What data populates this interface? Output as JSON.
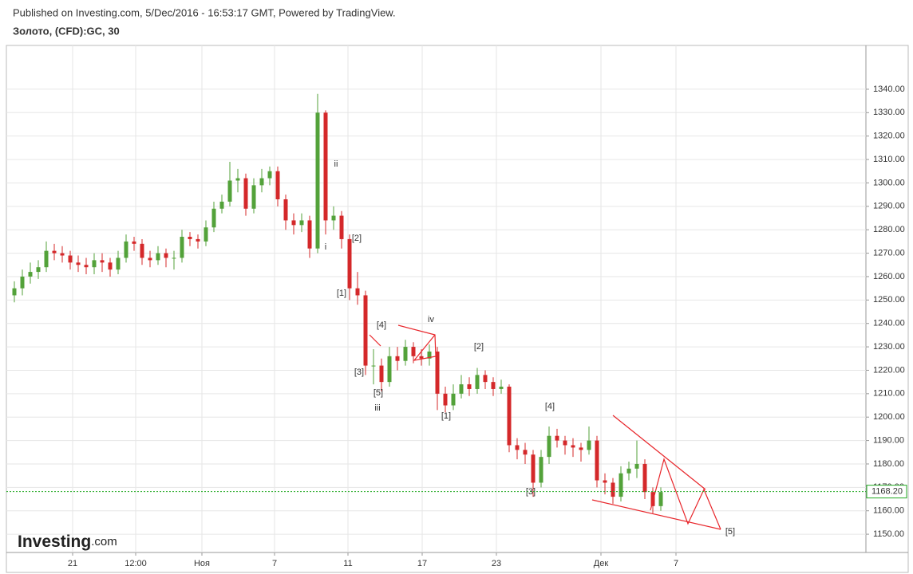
{
  "chart_data": {
    "type": "candlestick",
    "header": "Published on Investing.com, 5/Dec/2016 - 16:53:17 GMT, Powered by TradingView.",
    "title": "Золото, (CFD):GC, 30",
    "logo": [
      "Investing",
      ".com"
    ],
    "up_color": "#53a23a",
    "down_color": "#d4282a",
    "grid": true,
    "ylim": [
      1142.2,
      1358.7
    ],
    "yticks": [
      {
        "value": 1150,
        "label": "1150.00"
      },
      {
        "value": 1160,
        "label": "1160.00"
      },
      {
        "value": 1170,
        "label": "1170.00"
      },
      {
        "value": 1180,
        "label": "1180.00"
      },
      {
        "value": 1190,
        "label": "1190.00"
      },
      {
        "value": 1200,
        "label": "1200.00"
      },
      {
        "value": 1210,
        "label": "1210.00"
      },
      {
        "value": 1220,
        "label": "1220.00"
      },
      {
        "value": 1230,
        "label": "1230.00"
      },
      {
        "value": 1240,
        "label": "1240.00"
      },
      {
        "value": 1250,
        "label": "1250.00"
      },
      {
        "value": 1260,
        "label": "1260.00"
      },
      {
        "value": 1270,
        "label": "1270.00"
      },
      {
        "value": 1280,
        "label": "1280.00"
      },
      {
        "value": 1290,
        "label": "1290.00"
      },
      {
        "value": 1300,
        "label": "1300.00"
      },
      {
        "value": 1310,
        "label": "1310.00"
      },
      {
        "value": 1320,
        "label": "1320.00"
      },
      {
        "value": 1330,
        "label": "1330.00"
      },
      {
        "value": 1340,
        "label": "1340.00"
      }
    ],
    "xlim": [
      -1,
      106.7
    ],
    "xticks": [
      {
        "value": 7.3,
        "label": "21"
      },
      {
        "value": 15.2,
        "label": "12:00"
      },
      {
        "value": 23.5,
        "label": "Ноя"
      },
      {
        "value": 32.6,
        "label": "7"
      },
      {
        "value": 41.8,
        "label": "11"
      },
      {
        "value": 51.1,
        "label": "17"
      },
      {
        "value": 60.4,
        "label": "23"
      },
      {
        "value": 73.5,
        "label": "Дек"
      },
      {
        "value": 82.9,
        "label": "7"
      }
    ],
    "current_price": {
      "value": 1168.2,
      "label": "1168.20",
      "color": "#22aa22"
    },
    "annotations": [
      "ii",
      "i",
      "[2]",
      "[1]",
      "[4]",
      "iv",
      "[3]",
      "[5]",
      "iii",
      "[1]",
      "[2]",
      "[4]",
      "[3]",
      "[5]"
    ],
    "open": [
      1252,
      1255,
      1260,
      1262,
      1264,
      1271,
      1270,
      1269,
      1266,
      1265,
      1264,
      1267,
      1266,
      1263,
      1268,
      1275,
      1274,
      1268,
      1267,
      1270,
      1268,
      1268,
      1277,
      1276,
      1275,
      1281,
      1289,
      1292,
      1301,
      1302,
      1289,
      1299,
      1302,
      1305,
      1293,
      1284,
      1282,
      1284,
      1272,
      1330,
      1284,
      1286,
      1276,
      1255,
      1252,
      1222,
      1222,
      1215,
      1226,
      1224,
      1230,
      1226,
      1225,
      1228,
      1210,
      1205,
      1210,
      1214,
      1212,
      1218,
      1215,
      1212,
      1213,
      1188,
      1186,
      1184,
      1172,
      1183,
      1192,
      1190,
      1188,
      1187,
      1186,
      1190,
      1173,
      1172,
      1166,
      1176,
      1178,
      1180,
      1168,
      1162
    ],
    "high": [
      1258,
      1263,
      1266,
      1267,
      1275,
      1274,
      1273,
      1271,
      1269,
      1268,
      1270,
      1270,
      1268,
      1271,
      1278,
      1277,
      1276,
      1271,
      1273,
      1272,
      1271,
      1280,
      1279,
      1278,
      1284,
      1292,
      1295,
      1309,
      1306,
      1304,
      1302,
      1306,
      1307,
      1307,
      1295,
      1287,
      1287,
      1286,
      1338,
      1331,
      1290,
      1288,
      1278,
      1262,
      1254,
      1229,
      1225,
      1230,
      1230,
      1233,
      1232,
      1229,
      1231,
      1230,
      1213,
      1214,
      1218,
      1217,
      1221,
      1220,
      1217,
      1216,
      1214,
      1191,
      1189,
      1186,
      1186,
      1196,
      1195,
      1192,
      1191,
      1189,
      1196,
      1192,
      1176,
      1174,
      1179,
      1181,
      1190,
      1182,
      1170,
      1170
    ],
    "low": [
      1249,
      1252,
      1257,
      1259,
      1262,
      1267,
      1266,
      1263,
      1262,
      1261,
      1261,
      1262,
      1260,
      1261,
      1266,
      1271,
      1265,
      1264,
      1265,
      1264,
      1263,
      1266,
      1273,
      1272,
      1273,
      1279,
      1287,
      1290,
      1296,
      1286,
      1287,
      1296,
      1299,
      1290,
      1280,
      1278,
      1279,
      1268,
      1270,
      1278,
      1280,
      1272,
      1250,
      1248,
      1218,
      1214,
      1211,
      1213,
      1220,
      1222,
      1223,
      1222,
      1222,
      1203,
      1202,
      1203,
      1208,
      1209,
      1210,
      1212,
      1209,
      1210,
      1185,
      1182,
      1180,
      1166,
      1170,
      1180,
      1187,
      1184,
      1183,
      1181,
      1184,
      1170,
      1167,
      1163,
      1164,
      1173,
      1174,
      1165,
      1159,
      1160
    ],
    "close": [
      1255,
      1260,
      1262,
      1264,
      1271,
      1270,
      1269,
      1266,
      1265,
      1264,
      1267,
      1266,
      1263,
      1268,
      1275,
      1274,
      1268,
      1267,
      1270,
      1268,
      1268,
      1277,
      1276,
      1275,
      1281,
      1289,
      1292,
      1301,
      1302,
      1289,
      1299,
      1302,
      1305,
      1293,
      1284,
      1282,
      1284,
      1272,
      1330,
      1284,
      1286,
      1276,
      1255,
      1252,
      1222,
      1222,
      1215,
      1226,
      1224,
      1230,
      1226,
      1225,
      1228,
      1210,
      1205,
      1210,
      1214,
      1212,
      1218,
      1215,
      1212,
      1213,
      1188,
      1186,
      1184,
      1172,
      1183,
      1192,
      1190,
      1188,
      1187,
      1186,
      1190,
      1173,
      1172,
      1166,
      1176,
      1178,
      1180,
      1168,
      1162,
      1168
    ]
  }
}
